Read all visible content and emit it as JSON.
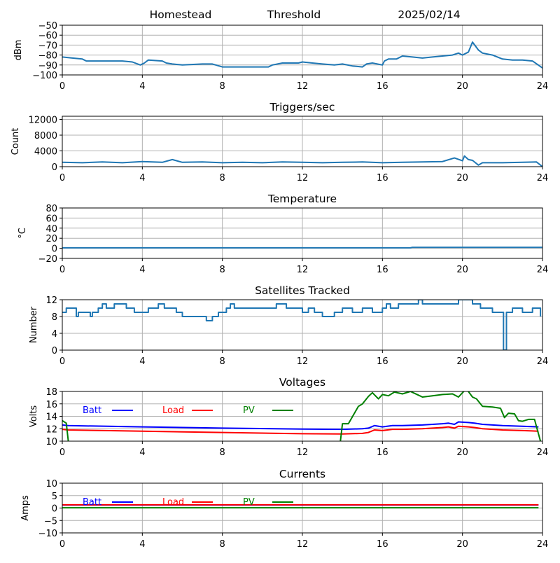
{
  "header": {
    "station": "Homestead",
    "mode": "Threshold",
    "date": "2025/02/14"
  },
  "colors": {
    "series_default": "#1f77b4",
    "batt": "#0000ff",
    "load": "#ff0000",
    "pv": "#008000",
    "grid": "#b0b0b0"
  },
  "chart_data": [
    {
      "id": "signal",
      "type": "line",
      "title": "",
      "xlabel": "",
      "ylabel": "dBm",
      "xlim": [
        0,
        24
      ],
      "ylim": [
        -100,
        -50
      ],
      "xticks": [
        0,
        4,
        8,
        12,
        16,
        20,
        24
      ],
      "yticks": [
        -100,
        -90,
        -80,
        -70,
        -60,
        -50
      ],
      "ytick_labels": [
        "−100",
        "−90",
        "−80",
        "−70",
        "−60",
        "−50"
      ],
      "grid": true,
      "series": [
        {
          "color_key": "series_default",
          "x": [
            0,
            0.5,
            1,
            1.2,
            2,
            3,
            3.5,
            3.9,
            4.1,
            4.3,
            5,
            5.2,
            5.5,
            6,
            7,
            7.5,
            8,
            8.5,
            9.5,
            10.3,
            10.5,
            11,
            11.5,
            11.8,
            12,
            12.5,
            13,
            13.6,
            14,
            14.5,
            15,
            15.2,
            15.5,
            16,
            16.1,
            16.3,
            16.7,
            17,
            17.5,
            18,
            18.5,
            19,
            19.5,
            19.8,
            20,
            20.3,
            20.5,
            20.8,
            21,
            21.5,
            22,
            22.5,
            23,
            23.5,
            24
          ],
          "y": [
            -82,
            -83,
            -84,
            -86,
            -86,
            -86,
            -87,
            -90,
            -88,
            -85,
            -86,
            -88,
            -89,
            -90,
            -89,
            -89,
            -92,
            -92,
            -92,
            -92,
            -90,
            -88,
            -88,
            -88,
            -87,
            -88,
            -89,
            -90,
            -89,
            -91,
            -92,
            -89,
            -88,
            -90,
            -86,
            -84,
            -84,
            -81,
            -82,
            -83,
            -82,
            -81,
            -80,
            -78,
            -80,
            -77,
            -67,
            -75,
            -78,
            -80,
            -84,
            -85,
            -85,
            -86,
            -93
          ]
        }
      ]
    },
    {
      "id": "triggers",
      "type": "line",
      "title": "Triggers/sec",
      "xlabel": "",
      "ylabel": "Count",
      "xlim": [
        0,
        24
      ],
      "ylim": [
        0,
        12800
      ],
      "xticks": [
        0,
        4,
        8,
        12,
        16,
        20,
        24
      ],
      "yticks": [
        0,
        4000,
        8000,
        12000
      ],
      "ytick_labels": [
        "0",
        "4000",
        "8000",
        "12000"
      ],
      "grid": true,
      "series": [
        {
          "color_key": "series_default",
          "x": [
            0,
            1,
            2,
            3,
            4,
            5,
            5.5,
            6,
            7,
            8,
            9,
            10,
            11,
            12,
            13,
            14,
            15,
            16,
            17,
            18,
            19,
            19.6,
            20,
            20.1,
            20.3,
            20.5,
            20.8,
            21,
            22,
            23,
            23.7,
            24
          ],
          "y": [
            1100,
            1000,
            1200,
            1000,
            1300,
            1100,
            1800,
            1100,
            1200,
            1000,
            1100,
            1000,
            1200,
            1100,
            1000,
            1100,
            1200,
            1000,
            1100,
            1200,
            1300,
            2200,
            1500,
            2700,
            1800,
            1600,
            400,
            1000,
            1000,
            1100,
            1200,
            0
          ]
        }
      ]
    },
    {
      "id": "temperature",
      "type": "line",
      "title": "Temperature",
      "xlabel": "",
      "ylabel": "°C",
      "xlim": [
        0,
        24
      ],
      "ylim": [
        -20,
        80
      ],
      "xticks": [
        0,
        4,
        8,
        12,
        16,
        20,
        24
      ],
      "yticks": [
        -20,
        0,
        20,
        40,
        60,
        80
      ],
      "ytick_labels": [
        "−20",
        "0",
        "20",
        "40",
        "60",
        "80"
      ],
      "grid": true,
      "series": [
        {
          "color_key": "series_default",
          "x": [
            0,
            17.4,
            17.5,
            24
          ],
          "y": [
            1,
            1,
            2,
            2
          ]
        }
      ]
    },
    {
      "id": "satellites",
      "type": "line",
      "title": "Satellites Tracked",
      "xlabel": "",
      "ylabel": "Number",
      "xlim": [
        0,
        24
      ],
      "ylim": [
        0,
        12
      ],
      "xticks": [
        0,
        4,
        8,
        12,
        16,
        20,
        24
      ],
      "yticks": [
        0,
        4,
        8,
        12
      ],
      "ytick_labels": [
        "0",
        "4",
        "8",
        "12"
      ],
      "grid": true,
      "series": [
        {
          "color_key": "series_default",
          "step": true,
          "x": [
            0,
            0.2,
            0.7,
            0.8,
            1.4,
            1.5,
            1.8,
            2.0,
            2.2,
            2.6,
            3.2,
            3.6,
            4.3,
            4.8,
            5.1,
            5.7,
            6.0,
            7.0,
            7.2,
            7.5,
            7.8,
            8.2,
            8.4,
            8.6,
            9.0,
            10.0,
            10.7,
            11.2,
            11.8,
            12.0,
            12.3,
            12.6,
            13.0,
            13.6,
            14.0,
            14.5,
            15.0,
            15.5,
            16.0,
            16.2,
            16.4,
            16.8,
            17.3,
            17.8,
            18.0,
            18.8,
            19.5,
            19.8,
            20.2,
            20.5,
            20.9,
            21.5,
            22.0,
            22.05,
            22.2,
            22.5,
            23.0,
            23.5,
            23.9
          ],
          "y": [
            9,
            10,
            8,
            9,
            8,
            9,
            10,
            11,
            10,
            11,
            10,
            9,
            10,
            11,
            10,
            9,
            8,
            8,
            7,
            8,
            9,
            10,
            11,
            10,
            10,
            10,
            11,
            10,
            10,
            9,
            10,
            9,
            8,
            9,
            10,
            9,
            10,
            9,
            10,
            11,
            10,
            11,
            11,
            12,
            11,
            11,
            11,
            12,
            12,
            11,
            10,
            9,
            9,
            0,
            9,
            10,
            9,
            10,
            8
          ]
        }
      ]
    },
    {
      "id": "voltages",
      "type": "line",
      "title": "Voltages",
      "xlabel": "",
      "ylabel": "Volts",
      "xlim": [
        0,
        24
      ],
      "ylim": [
        10,
        18
      ],
      "xticks": [
        0,
        4,
        8,
        12,
        16,
        20,
        24
      ],
      "yticks": [
        10,
        12,
        14,
        16,
        18
      ],
      "ytick_labels": [
        "10",
        "12",
        "14",
        "16",
        "18"
      ],
      "grid": true,
      "legend": [
        "Batt",
        "Load",
        "PV"
      ],
      "series": [
        {
          "name": "Batt",
          "color_key": "batt",
          "x": [
            0,
            0.3,
            4,
            8,
            12,
            14,
            15,
            15.3,
            15.6,
            16,
            16.5,
            17,
            18,
            18.5,
            19,
            19.3,
            19.6,
            19.8,
            20.3,
            20.6,
            21,
            22,
            23,
            23.8
          ],
          "y": [
            12.6,
            12.5,
            12.3,
            12.1,
            11.95,
            11.9,
            12.0,
            12.1,
            12.5,
            12.3,
            12.5,
            12.5,
            12.6,
            12.7,
            12.8,
            12.9,
            12.7,
            13.1,
            13.0,
            12.9,
            12.7,
            12.5,
            12.4,
            12.3
          ]
        },
        {
          "name": "Load",
          "color_key": "load",
          "x": [
            0,
            0.3,
            4,
            8,
            12,
            14,
            15,
            15.3,
            15.6,
            16,
            16.5,
            17,
            18,
            18.5,
            19,
            19.3,
            19.6,
            19.8,
            20.3,
            20.6,
            21,
            22,
            23,
            23.8
          ],
          "y": [
            11.9,
            11.8,
            11.6,
            11.4,
            11.2,
            11.15,
            11.25,
            11.4,
            11.8,
            11.7,
            11.9,
            11.9,
            12.0,
            12.1,
            12.2,
            12.3,
            12.1,
            12.4,
            12.3,
            12.2,
            12.0,
            11.8,
            11.7,
            11.6
          ]
        },
        {
          "name": "PV",
          "color_key": "pv",
          "x": [
            0,
            0.2,
            0.3,
            null,
            13.9,
            14.0,
            14.3,
            14.8,
            15.0,
            15.3,
            15.5,
            15.8,
            16.0,
            16.3,
            16.6,
            17.0,
            17.4,
            17.8,
            18.0,
            18.5,
            19.0,
            19.5,
            19.8,
            20.0,
            20.2,
            20.5,
            20.7,
            21.0,
            21.5,
            21.9,
            22.1,
            22.3,
            22.6,
            22.8,
            23.0,
            23.3,
            23.6,
            23.9
          ],
          "y": [
            13.3,
            12.9,
            10,
            null,
            10,
            12.8,
            12.8,
            15.6,
            16.0,
            17.2,
            17.8,
            16.8,
            17.5,
            17.3,
            17.9,
            17.6,
            18.0,
            17.4,
            17.1,
            17.3,
            17.5,
            17.6,
            17.1,
            17.8,
            18.4,
            17.1,
            16.8,
            15.6,
            15.5,
            15.3,
            13.8,
            14.5,
            14.4,
            13.3,
            13.2,
            13.5,
            13.5,
            10
          ]
        }
      ]
    },
    {
      "id": "currents",
      "type": "line",
      "title": "Currents",
      "xlabel": "",
      "ylabel": "Amps",
      "xlim": [
        0,
        24
      ],
      "ylim": [
        -10,
        10
      ],
      "xticks": [
        0,
        4,
        8,
        12,
        16,
        20,
        24
      ],
      "yticks": [
        -10,
        -5,
        0,
        5,
        10
      ],
      "ytick_labels": [
        "−10",
        "−5",
        "0",
        "5",
        "10"
      ],
      "grid": true,
      "legend": [
        "Batt",
        "Load",
        "PV"
      ],
      "series": [
        {
          "name": "Batt",
          "color_key": "batt",
          "x": [
            0,
            23.8
          ],
          "y": [
            1.2,
            1.2
          ]
        },
        {
          "name": "Load",
          "color_key": "load",
          "x": [
            0,
            23.8
          ],
          "y": [
            1.3,
            1.3
          ]
        },
        {
          "name": "PV",
          "color_key": "pv",
          "x": [
            0,
            23.8
          ],
          "y": [
            0.1,
            0.1
          ]
        }
      ]
    }
  ]
}
